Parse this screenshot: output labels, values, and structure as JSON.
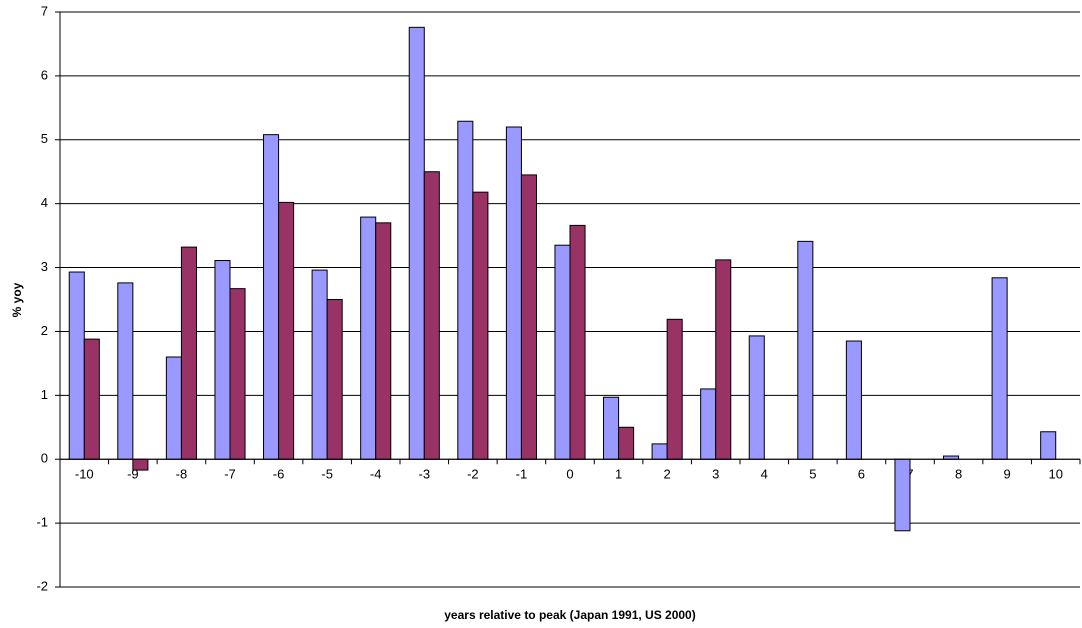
{
  "chart_data": {
    "type": "bar",
    "x_label": "years relative to peak (Japan 1991, US 2000)",
    "y_label": "% yoy",
    "categories": [
      -10,
      -9,
      -8,
      -7,
      -6,
      -5,
      -4,
      -3,
      -2,
      -1,
      0,
      1,
      2,
      3,
      4,
      5,
      6,
      7,
      8,
      9,
      10
    ],
    "series": [
      {
        "color": "#9999ff",
        "values": [
          2.93,
          2.76,
          1.6,
          3.11,
          5.08,
          2.96,
          3.79,
          6.76,
          5.29,
          5.2,
          3.35,
          0.97,
          0.24,
          1.1,
          1.93,
          3.41,
          1.85,
          -1.12,
          0.05,
          2.84,
          0.43
        ]
      },
      {
        "color": "#993366",
        "values": [
          1.88,
          -0.17,
          3.32,
          2.67,
          4.02,
          2.5,
          3.7,
          4.5,
          4.18,
          4.45,
          3.66,
          0.5,
          2.19,
          3.12,
          null,
          null,
          null,
          null,
          null,
          null,
          null
        ]
      }
    ],
    "ylim": [
      -2,
      7
    ],
    "yticks": [
      -2,
      -1,
      0,
      1,
      2,
      3,
      4,
      5,
      6,
      7
    ],
    "grid": true
  }
}
